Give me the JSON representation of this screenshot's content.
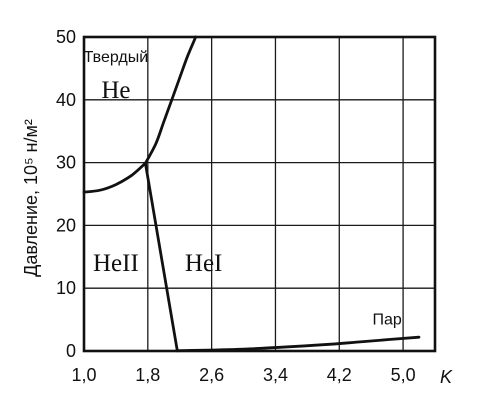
{
  "chart_data": {
    "type": "line",
    "title": "",
    "xlabel": "K",
    "ylabel": "Давление, 10⁵ н/м²",
    "xlim": [
      1.0,
      5.4
    ],
    "ylim": [
      0,
      50
    ],
    "xticks": [
      "1,0",
      "1,8",
      "2,6",
      "3,4",
      "4,2",
      "5,0"
    ],
    "xtick_values": [
      1.0,
      1.8,
      2.6,
      3.4,
      4.2,
      5.0
    ],
    "yticks": [
      "0",
      "10",
      "20",
      "30",
      "40",
      "50"
    ],
    "ytick_values": [
      0,
      10,
      20,
      30,
      40,
      50
    ],
    "grid": true,
    "series": [
      {
        "x": [
          1.0,
          1.2,
          1.4,
          1.6,
          1.77
        ],
        "y": [
          25.3,
          25.6,
          26.5,
          28.0,
          29.9
        ]
      },
      {
        "x": [
          1.77,
          1.9,
          2.0,
          2.1,
          2.2,
          2.3,
          2.4
        ],
        "y": [
          29.9,
          33.0,
          36.5,
          40.0,
          43.5,
          47.0,
          50.0
        ]
      },
      {
        "x": [
          1.77,
          2.17
        ],
        "y": [
          29.9,
          0.05
        ]
      },
      {
        "x": [
          2.17,
          3.0,
          4.0,
          4.5,
          5.2
        ],
        "y": [
          0.05,
          0.3,
          1.0,
          1.5,
          2.2
        ]
      }
    ],
    "annotations": [
      {
        "text": "Твердый",
        "x": 1.4,
        "y": 46.0,
        "style": "small"
      },
      {
        "text": "He",
        "x": 1.4,
        "y": 40.3,
        "style": "big"
      },
      {
        "text": "HeII",
        "x": 1.4,
        "y": 12.7,
        "style": "big"
      },
      {
        "text": "HeI",
        "x": 2.5,
        "y": 12.7,
        "style": "big"
      },
      {
        "text": "Пар",
        "x": 4.8,
        "y": 4.2,
        "style": "small"
      }
    ]
  }
}
